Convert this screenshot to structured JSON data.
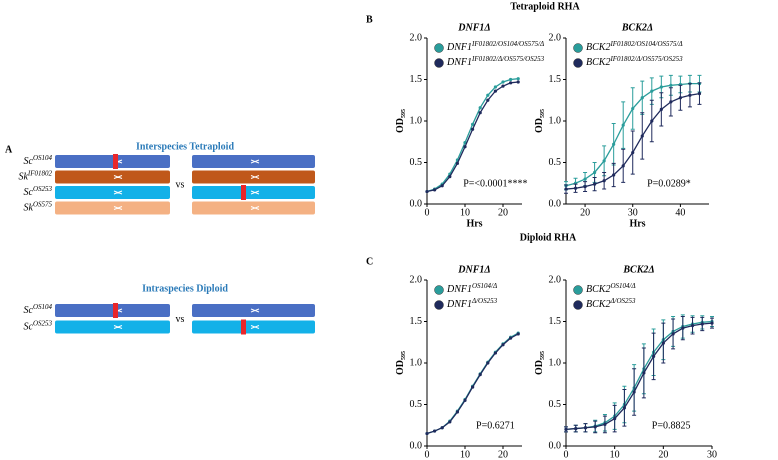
{
  "panel_labels": [
    "A",
    "B",
    "C"
  ],
  "section_titles": [
    "Tetraploid RHA",
    "Diploid RHA"
  ],
  "diagram": {
    "vs": "vs",
    "groups": [
      {
        "title": "Interspecies Tetraploid",
        "rows": [
          {
            "label": "Sc",
            "sup": "OS104"
          },
          {
            "label": "Sk",
            "sup": "IF01802"
          },
          {
            "label": "Sc",
            "sup": "OS253"
          },
          {
            "label": "Sk",
            "sup": "OS575"
          }
        ]
      },
      {
        "title": "Intraspecies Diploid",
        "rows": [
          {
            "label": "Sc",
            "sup": "OS104"
          },
          {
            "label": "Sc",
            "sup": "OS253"
          }
        ]
      }
    ]
  },
  "chart_data": [
    {
      "type": "line",
      "title": "DNF1Δ",
      "xlabel": "Hrs",
      "ylabel": "OD",
      "ylabel_sub": "595",
      "annotation": "P=<0.0001****",
      "xlim": [
        0,
        25
      ],
      "ylim": [
        0,
        2
      ],
      "xticks": [
        0,
        10,
        20
      ],
      "yticks": [
        {
          "value": 0,
          "label": "0.0"
        },
        {
          "value": 0.5,
          "label": "0.5"
        },
        {
          "value": 1,
          "label": "1.0"
        },
        {
          "value": 1.5,
          "label": "1.5"
        },
        {
          "value": 2,
          "label": "2.0"
        }
      ],
      "x": [
        0,
        2,
        4,
        6,
        8,
        10,
        12,
        14,
        16,
        18,
        20,
        22,
        24
      ],
      "series": [
        {
          "name": "DNF1",
          "name_sup": "IF01802/OS104/OS575/Δ",
          "color": "#2a9d9b",
          "values": [
            0.15,
            0.18,
            0.24,
            0.36,
            0.53,
            0.74,
            0.96,
            1.16,
            1.31,
            1.41,
            1.47,
            1.5,
            1.51
          ]
        },
        {
          "name": "DNF1",
          "name_sup": "IF01802/Δ/OS575/OS253",
          "color": "#1f2a5c",
          "values": [
            0.15,
            0.17,
            0.22,
            0.33,
            0.49,
            0.69,
            0.9,
            1.1,
            1.25,
            1.36,
            1.42,
            1.46,
            1.47
          ]
        }
      ]
    },
    {
      "type": "line",
      "title": "BCK2Δ",
      "xlabel": "Hrs",
      "ylabel": "OD",
      "ylabel_sub": "595",
      "annotation": "P=0.0289*",
      "xlim": [
        16,
        46
      ],
      "ylim": [
        0,
        2
      ],
      "xticks": [
        20,
        30,
        40
      ],
      "yticks": [
        {
          "value": 0,
          "label": "0.0"
        },
        {
          "value": 0.5,
          "label": "0.5"
        },
        {
          "value": 1,
          "label": "1.0"
        },
        {
          "value": 1.5,
          "label": "1.5"
        },
        {
          "value": 2,
          "label": "2.0"
        }
      ],
      "x": [
        16,
        18,
        20,
        22,
        24,
        26,
        28,
        30,
        32,
        34,
        36,
        38,
        40,
        42,
        44
      ],
      "series": [
        {
          "name": "BCK2",
          "name_sup": "IF01802/OS104/OS575/Δ",
          "color": "#2a9d9b",
          "values": [
            0.22,
            0.25,
            0.3,
            0.38,
            0.52,
            0.72,
            0.95,
            1.15,
            1.28,
            1.36,
            1.41,
            1.43,
            1.44,
            1.45,
            1.45
          ],
          "errors": [
            0.05,
            0.06,
            0.08,
            0.12,
            0.18,
            0.25,
            0.28,
            0.25,
            0.2,
            0.16,
            0.13,
            0.12,
            0.1,
            0.1,
            0.1
          ]
        },
        {
          "name": "BCK2",
          "name_sup": "IF01802/Δ/OS575/OS253",
          "color": "#1f2a5c",
          "values": [
            0.18,
            0.19,
            0.21,
            0.24,
            0.28,
            0.35,
            0.46,
            0.62,
            0.82,
            1.0,
            1.14,
            1.23,
            1.28,
            1.31,
            1.33
          ],
          "errors": [
            0.05,
            0.05,
            0.06,
            0.08,
            0.1,
            0.14,
            0.2,
            0.26,
            0.28,
            0.25,
            0.2,
            0.17,
            0.15,
            0.14,
            0.13
          ]
        }
      ]
    },
    {
      "type": "line",
      "title": "DNF1Δ",
      "xlabel": "Hrs",
      "ylabel": "OD",
      "ylabel_sub": "595",
      "annotation": "P=0.6271",
      "xlim": [
        0,
        25
      ],
      "ylim": [
        0,
        2
      ],
      "xticks": [
        0,
        10,
        20
      ],
      "yticks": [
        {
          "value": 0,
          "label": "0.0"
        },
        {
          "value": 0.5,
          "label": "0.5"
        },
        {
          "value": 1,
          "label": "1.0"
        },
        {
          "value": 1.5,
          "label": "1.5"
        },
        {
          "value": 2,
          "label": "2.0"
        }
      ],
      "x": [
        0,
        2,
        4,
        6,
        8,
        10,
        12,
        14,
        16,
        18,
        20,
        22,
        24
      ],
      "series": [
        {
          "name": "DNF1",
          "name_sup": "OS104/Δ",
          "color": "#2a9d9b",
          "values": [
            0.15,
            0.18,
            0.22,
            0.3,
            0.42,
            0.56,
            0.72,
            0.87,
            1.01,
            1.13,
            1.23,
            1.31,
            1.36
          ]
        },
        {
          "name": "DNF1",
          "name_sup": "Δ/OS253",
          "color": "#1f2a5c",
          "values": [
            0.15,
            0.18,
            0.22,
            0.29,
            0.41,
            0.55,
            0.71,
            0.86,
            1.0,
            1.12,
            1.22,
            1.3,
            1.35
          ]
        }
      ]
    },
    {
      "type": "line",
      "title": "BCK2Δ",
      "xlabel": "Hrs",
      "ylabel": "OD",
      "ylabel_sub": "595",
      "annotation": "P=0.8825",
      "xlim": [
        0,
        30
      ],
      "ylim": [
        0,
        2
      ],
      "xticks": [
        0,
        10,
        20,
        30
      ],
      "yticks": [
        {
          "value": 0,
          "label": "0.0"
        },
        {
          "value": 0.5,
          "label": "0.5"
        },
        {
          "value": 1,
          "label": "1.0"
        },
        {
          "value": 1.5,
          "label": "1.5"
        },
        {
          "value": 2,
          "label": "2.0"
        }
      ],
      "x": [
        0,
        2,
        4,
        6,
        8,
        10,
        12,
        14,
        16,
        18,
        20,
        22,
        24,
        26,
        28,
        30
      ],
      "series": [
        {
          "name": "BCK2",
          "name_sup": "OS104/Δ",
          "color": "#2a9d9b",
          "values": [
            0.2,
            0.21,
            0.22,
            0.24,
            0.28,
            0.36,
            0.5,
            0.7,
            0.93,
            1.13,
            1.28,
            1.38,
            1.44,
            1.47,
            1.49,
            1.5
          ],
          "errors": [
            0.03,
            0.04,
            0.05,
            0.07,
            0.1,
            0.16,
            0.22,
            0.28,
            0.3,
            0.28,
            0.24,
            0.18,
            0.14,
            0.1,
            0.08,
            0.06
          ]
        },
        {
          "name": "BCK2",
          "name_sup": "Δ/OS253",
          "color": "#1f2a5c",
          "values": [
            0.2,
            0.21,
            0.22,
            0.23,
            0.26,
            0.33,
            0.46,
            0.65,
            0.88,
            1.08,
            1.24,
            1.35,
            1.42,
            1.45,
            1.47,
            1.48
          ],
          "errors": [
            0.03,
            0.04,
            0.05,
            0.07,
            0.1,
            0.16,
            0.22,
            0.28,
            0.3,
            0.28,
            0.24,
            0.18,
            0.14,
            0.1,
            0.08,
            0.06
          ]
        }
      ]
    }
  ]
}
